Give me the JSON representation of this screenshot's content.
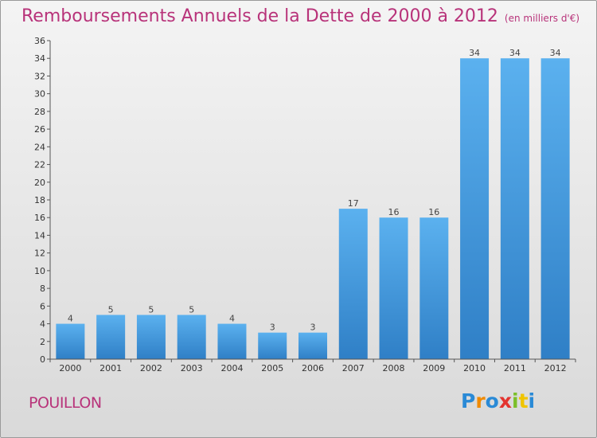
{
  "header": {
    "title": "Remboursements Annuels de la Dette de 2000 à 2012",
    "unit": "(en milliers d'€)"
  },
  "footer": {
    "commune": "POUILLON",
    "logo": {
      "name": "logo-proxiti",
      "letters": [
        {
          "char": "P",
          "color": "#2a8ad6"
        },
        {
          "char": "r",
          "color": "#f08a00"
        },
        {
          "char": "o",
          "color": "#2a8ad6"
        },
        {
          "char": "x",
          "color": "#e3342f"
        },
        {
          "char": "i",
          "color": "#7bbf2a"
        },
        {
          "char": "t",
          "color": "#f0c400"
        },
        {
          "char": "i",
          "color": "#2a8ad6"
        }
      ]
    }
  },
  "chart_data": {
    "type": "bar",
    "title": "Remboursements Annuels de la Dette de 2000 à 2012",
    "xlabel": "",
    "ylabel": "",
    "categories": [
      "2000",
      "2001",
      "2002",
      "2003",
      "2004",
      "2005",
      "2006",
      "2007",
      "2008",
      "2009",
      "2010",
      "2011",
      "2012"
    ],
    "values": [
      4,
      5,
      5,
      5,
      4,
      3,
      3,
      17,
      16,
      16,
      34,
      34,
      34
    ],
    "ylim": [
      0,
      36
    ],
    "yticks": [
      0,
      2,
      4,
      6,
      8,
      10,
      12,
      14,
      16,
      18,
      20,
      22,
      24,
      26,
      28,
      30,
      32,
      34,
      36
    ],
    "grid": false,
    "bar_color": "#4a9ee2"
  }
}
